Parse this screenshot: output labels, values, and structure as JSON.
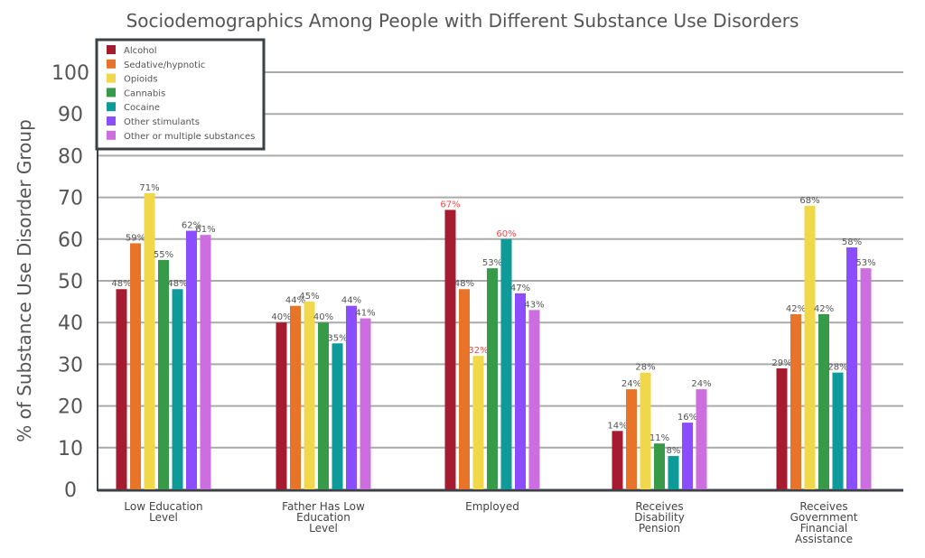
{
  "chart_data": {
    "type": "bar",
    "title": "Sociodemographics Among People with Different Substance Use Disorders",
    "xlabel": "",
    "ylabel": "% of Substance Use Disorder Group",
    "ylim": [
      0,
      100
    ],
    "yticks": [
      "0",
      "10",
      "20",
      "30",
      "40",
      "50",
      "60",
      "70",
      "80",
      "90",
      "100"
    ],
    "grid": true,
    "legend_position": "top-left",
    "categories": [
      [
        "Low Education",
        "Level"
      ],
      [
        "Father Has Low",
        "Education",
        "Level"
      ],
      [
        "Employed"
      ],
      [
        "Receives",
        "Disability",
        "Pension"
      ],
      [
        "Receives",
        "Government",
        "Financial",
        "Assistance"
      ]
    ],
    "series": [
      {
        "name": "Alcohol",
        "color": "#a51c30",
        "values": [
          48,
          40,
          67,
          14,
          29
        ]
      },
      {
        "name": "Sedative/hypnotic",
        "color": "#e8742a",
        "values": [
          59,
          44,
          48,
          24,
          42
        ]
      },
      {
        "name": "Opioids",
        "color": "#f0d84a",
        "values": [
          71,
          45,
          32,
          28,
          68
        ]
      },
      {
        "name": "Cannabis",
        "color": "#369a48",
        "values": [
          55,
          40,
          53,
          11,
          42
        ]
      },
      {
        "name": "Cocaine",
        "color": "#0f9a9a",
        "values": [
          48,
          35,
          60,
          8,
          28
        ]
      },
      {
        "name": "Other stimulants",
        "color": "#8a4dff",
        "values": [
          62,
          44,
          47,
          16,
          58
        ]
      },
      {
        "name": "Other or multiple substances",
        "color": "#cc6ee0",
        "values": [
          61,
          41,
          43,
          24,
          53
        ]
      }
    ],
    "highlighted_labels": [
      [
        2,
        0
      ],
      [
        2,
        2
      ],
      [
        2,
        4
      ]
    ],
    "highlight_color": "#f04a4a",
    "label_suffix": "%"
  }
}
